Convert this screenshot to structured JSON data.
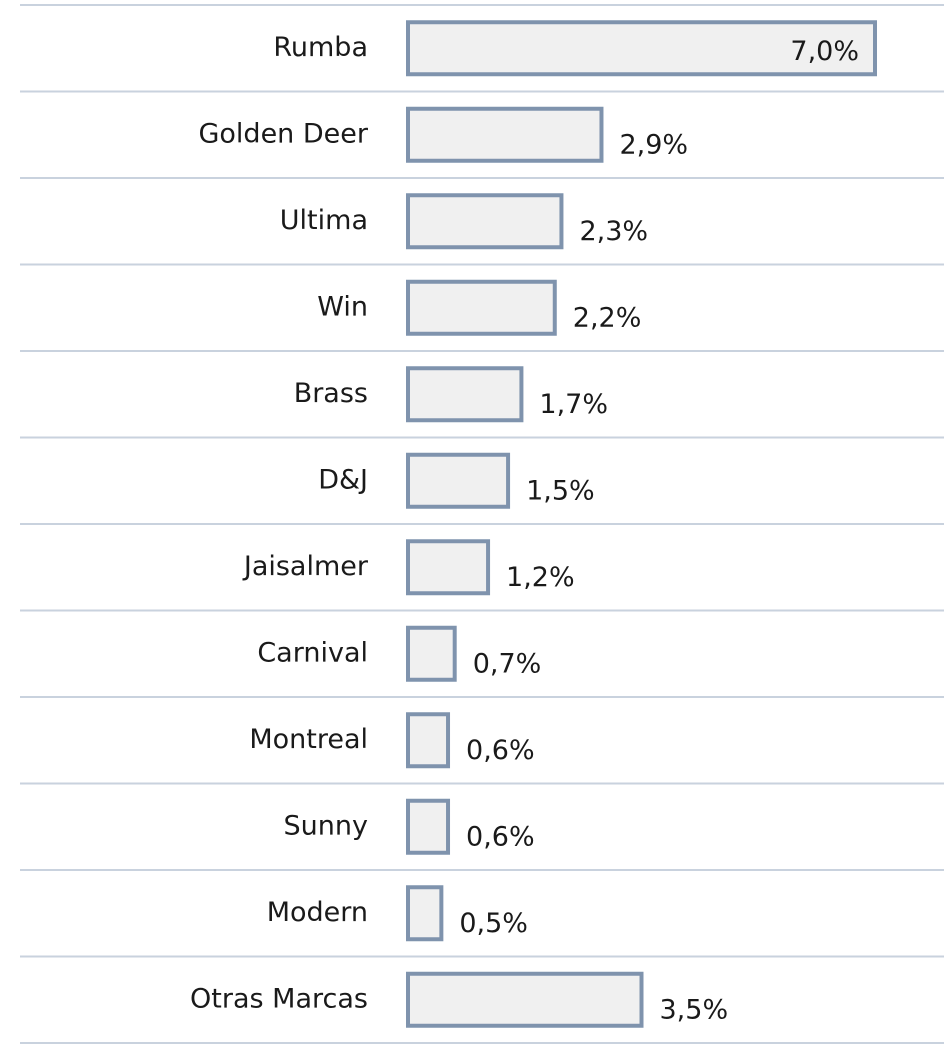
{
  "chart_data": {
    "type": "bar",
    "orientation": "horizontal",
    "categories": [
      "Rumba",
      "Golden Deer",
      "Ultima",
      "Win",
      "Brass",
      "D&J",
      "Jaisalmer",
      "Carnival",
      "Montreal",
      "Sunny",
      "Modern",
      "Otras Marcas"
    ],
    "values": [
      7.0,
      2.9,
      2.3,
      2.2,
      1.7,
      1.5,
      1.2,
      0.7,
      0.6,
      0.6,
      0.5,
      3.5
    ],
    "value_labels": [
      "7,0%",
      "2,9%",
      "2,3%",
      "2,2%",
      "1,7%",
      "1,5%",
      "1,2%",
      "0,7%",
      "0,6%",
      "0,6%",
      "0,5%",
      "3,5%"
    ],
    "color": "#f0f0f0",
    "edge_color": "#7f93ad"
  }
}
